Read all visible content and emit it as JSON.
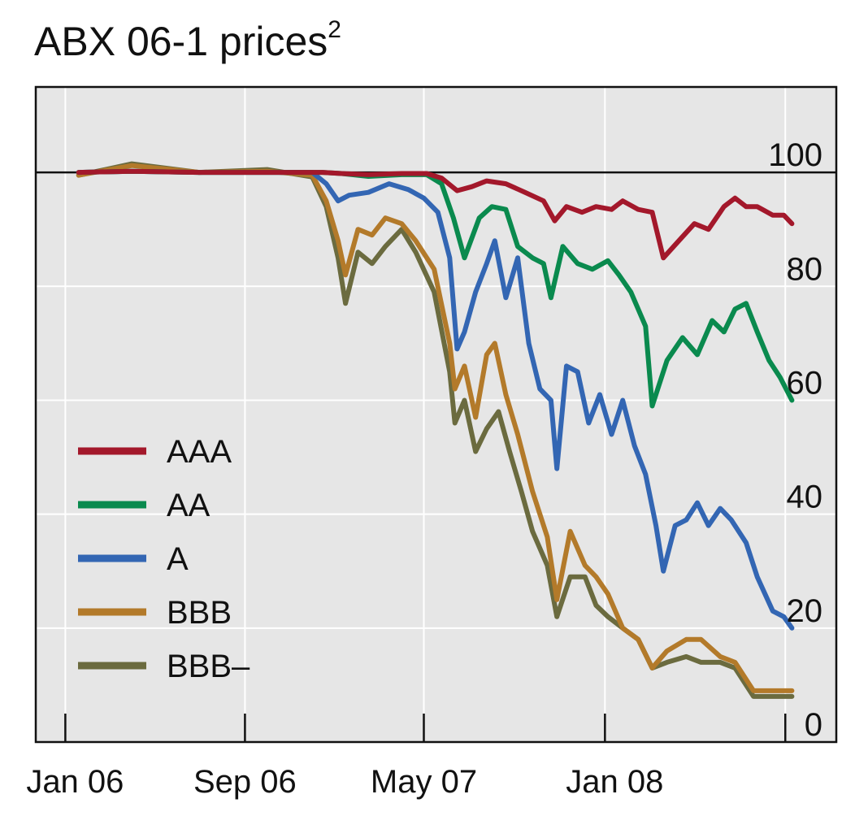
{
  "chart_data": {
    "type": "line",
    "title": "ABX 06-1 prices",
    "title_superscript": "2",
    "xlabel": "",
    "ylabel": "",
    "x_ticks": [
      "Jan 06",
      "Sep 06",
      "May 07",
      "Jan 08"
    ],
    "y_ticks": [
      "0",
      "20",
      "40",
      "60",
      "80",
      "100"
    ],
    "ylim": [
      0,
      115
    ],
    "xlim": [
      "2005-11-22",
      "2008-11-09"
    ],
    "grid": true,
    "reference_line": 100,
    "legend_position": "left",
    "series": [
      {
        "name": "AAA",
        "color": "#a3182b",
        "points": [
          [
            "2006-01-19",
            100
          ],
          [
            "2006-04-01",
            100.2
          ],
          [
            "2006-07-01",
            100
          ],
          [
            "2006-10-01",
            100
          ],
          [
            "2006-12-15",
            100
          ],
          [
            "2007-01-10",
            99.8
          ],
          [
            "2007-02-15",
            99.6
          ],
          [
            "2007-04-01",
            99.8
          ],
          [
            "2007-05-05",
            99.8
          ],
          [
            "2007-05-25",
            99.0
          ],
          [
            "2007-06-15",
            96.8
          ],
          [
            "2007-07-05",
            97.5
          ],
          [
            "2007-07-25",
            98.5
          ],
          [
            "2007-08-20",
            98.0
          ],
          [
            "2007-09-15",
            96.5
          ],
          [
            "2007-10-10",
            95.0
          ],
          [
            "2007-10-25",
            91.5
          ],
          [
            "2007-11-10",
            94.0
          ],
          [
            "2007-12-01",
            93.0
          ],
          [
            "2007-12-20",
            94.0
          ],
          [
            "2008-01-10",
            93.5
          ],
          [
            "2008-01-25",
            95.0
          ],
          [
            "2008-02-15",
            93.5
          ],
          [
            "2008-03-05",
            93.0
          ],
          [
            "2008-03-20",
            85.0
          ],
          [
            "2008-04-10",
            88.0
          ],
          [
            "2008-05-01",
            91.0
          ],
          [
            "2008-05-20",
            90.0
          ],
          [
            "2008-06-10",
            94.0
          ],
          [
            "2008-06-25",
            95.5
          ],
          [
            "2008-07-10",
            94.0
          ],
          [
            "2008-07-25",
            94.0
          ],
          [
            "2008-08-15",
            92.5
          ],
          [
            "2008-08-30",
            92.5
          ],
          [
            "2008-09-10",
            91.0
          ]
        ]
      },
      {
        "name": "AA",
        "color": "#0a8a4e",
        "points": [
          [
            "2006-01-19",
            100
          ],
          [
            "2006-04-01",
            100.2
          ],
          [
            "2006-07-01",
            100
          ],
          [
            "2006-10-01",
            100
          ],
          [
            "2006-12-15",
            100
          ],
          [
            "2007-01-10",
            99.8
          ],
          [
            "2007-02-15",
            99.3
          ],
          [
            "2007-04-01",
            99.6
          ],
          [
            "2007-05-05",
            99.6
          ],
          [
            "2007-05-25",
            98.0
          ],
          [
            "2007-06-10",
            92.0
          ],
          [
            "2007-06-25",
            85.0
          ],
          [
            "2007-07-15",
            92.0
          ],
          [
            "2007-08-01",
            94.0
          ],
          [
            "2007-08-20",
            93.5
          ],
          [
            "2007-09-05",
            87.0
          ],
          [
            "2007-09-25",
            85.0
          ],
          [
            "2007-10-10",
            84.0
          ],
          [
            "2007-10-20",
            78.0
          ],
          [
            "2007-11-05",
            87.0
          ],
          [
            "2007-11-25",
            84.0
          ],
          [
            "2007-12-15",
            83.0
          ],
          [
            "2008-01-05",
            84.5
          ],
          [
            "2008-01-20",
            82.0
          ],
          [
            "2008-02-05",
            79.0
          ],
          [
            "2008-02-25",
            73.0
          ],
          [
            "2008-03-05",
            59.0
          ],
          [
            "2008-03-25",
            67.0
          ],
          [
            "2008-04-15",
            71.0
          ],
          [
            "2008-05-05",
            68.0
          ],
          [
            "2008-05-25",
            74.0
          ],
          [
            "2008-06-10",
            72.0
          ],
          [
            "2008-06-25",
            76.0
          ],
          [
            "2008-07-10",
            77.0
          ],
          [
            "2008-07-25",
            72.0
          ],
          [
            "2008-08-10",
            67.0
          ],
          [
            "2008-08-25",
            64.0
          ],
          [
            "2008-09-10",
            60.0
          ]
        ]
      },
      {
        "name": "A",
        "color": "#3366b3",
        "points": [
          [
            "2006-01-19",
            100
          ],
          [
            "2006-04-01",
            100.2
          ],
          [
            "2006-07-01",
            100
          ],
          [
            "2006-10-01",
            100
          ],
          [
            "2006-12-01",
            100
          ],
          [
            "2006-12-20",
            98.0
          ],
          [
            "2007-01-05",
            95.0
          ],
          [
            "2007-01-20",
            96.0
          ],
          [
            "2007-02-15",
            96.5
          ],
          [
            "2007-03-15",
            98.0
          ],
          [
            "2007-04-10",
            97.0
          ],
          [
            "2007-05-01",
            95.5
          ],
          [
            "2007-05-20",
            93.0
          ],
          [
            "2007-06-05",
            85.0
          ],
          [
            "2007-06-15",
            69.0
          ],
          [
            "2007-06-25",
            72.0
          ],
          [
            "2007-07-10",
            79.0
          ],
          [
            "2007-07-25",
            84.0
          ],
          [
            "2007-08-05",
            88.0
          ],
          [
            "2007-08-20",
            78.0
          ],
          [
            "2007-09-05",
            85.0
          ],
          [
            "2007-09-20",
            70.0
          ],
          [
            "2007-10-05",
            62.0
          ],
          [
            "2007-10-20",
            60.0
          ],
          [
            "2007-10-28",
            48.0
          ],
          [
            "2007-11-10",
            66.0
          ],
          [
            "2007-11-25",
            65.0
          ],
          [
            "2007-12-10",
            56.0
          ],
          [
            "2007-12-25",
            61.0
          ],
          [
            "2008-01-10",
            54.0
          ],
          [
            "2008-01-25",
            60.0
          ],
          [
            "2008-02-10",
            52.0
          ],
          [
            "2008-02-25",
            47.0
          ],
          [
            "2008-03-10",
            38.0
          ],
          [
            "2008-03-20",
            30.0
          ],
          [
            "2008-04-05",
            38.0
          ],
          [
            "2008-04-20",
            39.0
          ],
          [
            "2008-05-05",
            42.0
          ],
          [
            "2008-05-20",
            38.0
          ],
          [
            "2008-06-05",
            41.0
          ],
          [
            "2008-06-20",
            39.0
          ],
          [
            "2008-07-10",
            35.0
          ],
          [
            "2008-07-25",
            29.0
          ],
          [
            "2008-08-15",
            23.0
          ],
          [
            "2008-08-30",
            22.0
          ],
          [
            "2008-09-10",
            20.0
          ]
        ]
      },
      {
        "name": "BBB",
        "color": "#b37a2a",
        "points": [
          [
            "2006-01-19",
            99.5
          ],
          [
            "2006-04-01",
            101.2
          ],
          [
            "2006-07-01",
            100
          ],
          [
            "2006-10-01",
            100.2
          ],
          [
            "2006-12-01",
            99.5
          ],
          [
            "2006-12-20",
            95.0
          ],
          [
            "2007-01-05",
            88.0
          ],
          [
            "2007-01-15",
            82.0
          ],
          [
            "2007-02-01",
            90.0
          ],
          [
            "2007-02-20",
            89.0
          ],
          [
            "2007-03-10",
            92.0
          ],
          [
            "2007-04-01",
            91.0
          ],
          [
            "2007-04-20",
            88.0
          ],
          [
            "2007-05-15",
            83.0
          ],
          [
            "2007-06-05",
            70.0
          ],
          [
            "2007-06-12",
            62.0
          ],
          [
            "2007-06-25",
            66.0
          ],
          [
            "2007-07-10",
            57.0
          ],
          [
            "2007-07-25",
            68.0
          ],
          [
            "2007-08-05",
            70.0
          ],
          [
            "2007-08-20",
            61.0
          ],
          [
            "2007-09-05",
            54.0
          ],
          [
            "2007-09-25",
            44.0
          ],
          [
            "2007-10-15",
            36.0
          ],
          [
            "2007-10-28",
            25.0
          ],
          [
            "2007-11-15",
            37.0
          ],
          [
            "2007-12-05",
            31.0
          ],
          [
            "2007-12-20",
            29.0
          ],
          [
            "2008-01-05",
            26.0
          ],
          [
            "2008-01-25",
            20.0
          ],
          [
            "2008-02-15",
            18.0
          ],
          [
            "2008-03-05",
            13.0
          ],
          [
            "2008-03-25",
            16.0
          ],
          [
            "2008-04-20",
            18.0
          ],
          [
            "2008-05-10",
            18.0
          ],
          [
            "2008-06-05",
            15.0
          ],
          [
            "2008-06-25",
            14.0
          ],
          [
            "2008-07-20",
            9.0
          ],
          [
            "2008-08-15",
            9.0
          ],
          [
            "2008-09-10",
            9.0
          ]
        ]
      },
      {
        "name": "BBB–",
        "color": "#6b6b3f",
        "points": [
          [
            "2006-01-19",
            99.5
          ],
          [
            "2006-04-01",
            101.5
          ],
          [
            "2006-07-01",
            100
          ],
          [
            "2006-10-01",
            100.5
          ],
          [
            "2006-12-01",
            99.2
          ],
          [
            "2006-12-20",
            94.0
          ],
          [
            "2007-01-05",
            85.0
          ],
          [
            "2007-01-15",
            77.0
          ],
          [
            "2007-02-01",
            86.0
          ],
          [
            "2007-02-20",
            84.0
          ],
          [
            "2007-03-10",
            87.0
          ],
          [
            "2007-04-01",
            90.0
          ],
          [
            "2007-04-20",
            86.0
          ],
          [
            "2007-05-15",
            79.0
          ],
          [
            "2007-06-05",
            65.0
          ],
          [
            "2007-06-12",
            56.0
          ],
          [
            "2007-06-25",
            60.0
          ],
          [
            "2007-07-10",
            51.0
          ],
          [
            "2007-07-25",
            55.0
          ],
          [
            "2007-08-10",
            58.0
          ],
          [
            "2007-08-25",
            51.0
          ],
          [
            "2007-09-10",
            44.0
          ],
          [
            "2007-09-25",
            37.0
          ],
          [
            "2007-10-15",
            31.0
          ],
          [
            "2007-10-28",
            22.0
          ],
          [
            "2007-11-15",
            29.0
          ],
          [
            "2007-12-05",
            29.0
          ],
          [
            "2007-12-20",
            24.0
          ],
          [
            "2008-01-05",
            22.0
          ],
          [
            "2008-01-25",
            20.0
          ],
          [
            "2008-02-15",
            18.0
          ],
          [
            "2008-03-05",
            13.0
          ],
          [
            "2008-03-25",
            14.0
          ],
          [
            "2008-04-20",
            15.0
          ],
          [
            "2008-05-10",
            14.0
          ],
          [
            "2008-06-05",
            14.0
          ],
          [
            "2008-06-25",
            13.0
          ],
          [
            "2008-07-20",
            8.0
          ],
          [
            "2008-08-15",
            8.0
          ],
          [
            "2008-09-10",
            8.0
          ]
        ]
      }
    ]
  }
}
